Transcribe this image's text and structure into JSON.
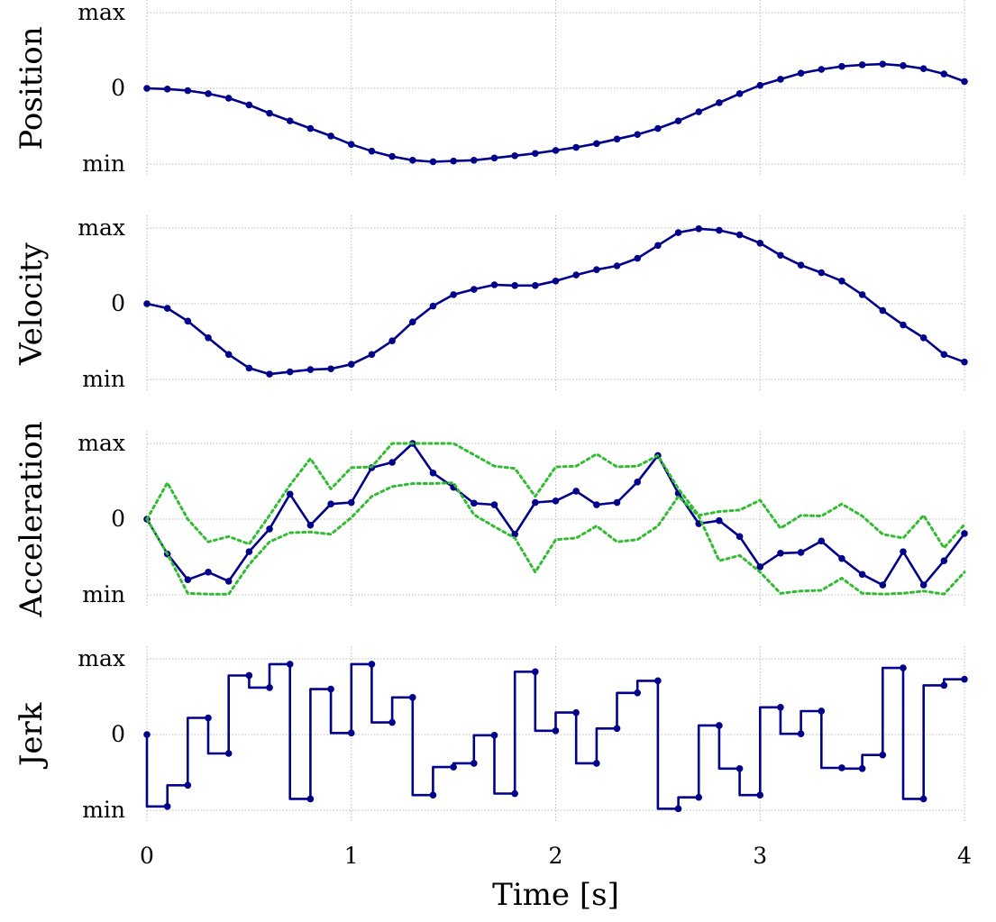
{
  "chart_data": [
    {
      "type": "line",
      "ylabel": "Position",
      "ytick_labels": [
        "max",
        "0",
        "min"
      ],
      "ylim": [
        -1,
        1
      ],
      "xlim": [
        0,
        4
      ],
      "grid": true,
      "series": [
        {
          "name": "position",
          "color": "#00008b",
          "markers": true,
          "x": [
            0,
            0.1,
            0.2,
            0.3,
            0.4,
            0.5,
            0.6,
            0.7,
            0.8,
            0.9,
            1.0,
            1.1,
            1.2,
            1.3,
            1.4,
            1.5,
            1.6,
            1.7,
            1.8,
            1.9,
            2.0,
            2.1,
            2.2,
            2.3,
            2.4,
            2.5,
            2.6,
            2.7,
            2.8,
            2.9,
            3.0,
            3.1,
            3.2,
            3.3,
            3.4,
            3.5,
            3.6,
            3.7,
            3.8,
            3.9,
            4.0
          ],
          "values": [
            0,
            -0.01,
            -0.03,
            -0.07,
            -0.13,
            -0.22,
            -0.33,
            -0.43,
            -0.53,
            -0.63,
            -0.74,
            -0.83,
            -0.9,
            -0.95,
            -0.97,
            -0.96,
            -0.95,
            -0.92,
            -0.89,
            -0.86,
            -0.82,
            -0.78,
            -0.73,
            -0.67,
            -0.61,
            -0.53,
            -0.43,
            -0.31,
            -0.19,
            -0.07,
            0.04,
            0.12,
            0.2,
            0.25,
            0.29,
            0.31,
            0.32,
            0.3,
            0.26,
            0.19,
            0.09
          ]
        }
      ]
    },
    {
      "type": "line",
      "ylabel": "Velocity",
      "ytick_labels": [
        "max",
        "0",
        "min"
      ],
      "ylim": [
        -1,
        1
      ],
      "xlim": [
        0,
        4
      ],
      "grid": true,
      "series": [
        {
          "name": "velocity",
          "color": "#00008b",
          "markers": true,
          "x": [
            0,
            0.1,
            0.2,
            0.3,
            0.4,
            0.5,
            0.6,
            0.7,
            0.8,
            0.9,
            1.0,
            1.1,
            1.2,
            1.3,
            1.4,
            1.5,
            1.6,
            1.7,
            1.8,
            1.9,
            2.0,
            2.1,
            2.2,
            2.3,
            2.4,
            2.5,
            2.6,
            2.7,
            2.8,
            2.9,
            3.0,
            3.1,
            3.2,
            3.3,
            3.4,
            3.5,
            3.6,
            3.7,
            3.8,
            3.9,
            4.0
          ],
          "values": [
            0,
            -0.06,
            -0.23,
            -0.45,
            -0.67,
            -0.85,
            -0.93,
            -0.9,
            -0.87,
            -0.86,
            -0.8,
            -0.67,
            -0.49,
            -0.24,
            -0.03,
            0.12,
            0.19,
            0.25,
            0.24,
            0.24,
            0.3,
            0.38,
            0.45,
            0.5,
            0.6,
            0.77,
            0.94,
            0.99,
            0.97,
            0.91,
            0.8,
            0.64,
            0.51,
            0.41,
            0.3,
            0.12,
            -0.09,
            -0.28,
            -0.45,
            -0.67,
            -0.77
          ]
        }
      ]
    },
    {
      "type": "line",
      "ylabel": "Acceleration",
      "ytick_labels": [
        "max",
        "0",
        "min"
      ],
      "ylim": [
        -1,
        1
      ],
      "xlim": [
        0,
        4
      ],
      "grid": true,
      "series": [
        {
          "name": "acceleration",
          "color": "#00008b",
          "markers": true,
          "x": [
            0,
            0.1,
            0.2,
            0.3,
            0.4,
            0.5,
            0.6,
            0.7,
            0.8,
            0.9,
            1.0,
            1.1,
            1.2,
            1.3,
            1.4,
            1.5,
            1.6,
            1.7,
            1.8,
            1.9,
            2.0,
            2.1,
            2.2,
            2.3,
            2.4,
            2.5,
            2.6,
            2.7,
            2.8,
            2.9,
            3.0,
            3.1,
            3.2,
            3.3,
            3.4,
            3.5,
            3.6,
            3.7,
            3.8,
            3.9,
            4.0
          ],
          "values": [
            0,
            -0.46,
            -0.8,
            -0.7,
            -0.82,
            -0.43,
            -0.13,
            0.33,
            -0.08,
            0.2,
            0.22,
            0.68,
            0.75,
            1.0,
            0.61,
            0.42,
            0.21,
            0.19,
            -0.2,
            0.22,
            0.24,
            0.37,
            0.19,
            0.22,
            0.49,
            0.84,
            0.34,
            -0.06,
            -0.02,
            -0.23,
            -0.63,
            -0.45,
            -0.44,
            -0.29,
            -0.52,
            -0.73,
            -0.87,
            -0.43,
            -0.87,
            -0.55,
            -0.19
          ]
        },
        {
          "name": "upper bound",
          "color": "#33bb33",
          "markers": false,
          "dotted": true,
          "x": [
            0,
            0.1,
            0.2,
            0.3,
            0.4,
            0.5,
            0.6,
            0.7,
            0.8,
            0.9,
            1.0,
            1.1,
            1.2,
            1.3,
            1.4,
            1.5,
            1.6,
            1.7,
            1.8,
            1.9,
            2.0,
            2.1,
            2.2,
            2.3,
            2.4,
            2.5,
            2.6,
            2.7,
            2.8,
            2.9,
            3.0,
            3.1,
            3.2,
            3.3,
            3.4,
            3.5,
            3.6,
            3.7,
            3.8,
            3.9,
            4.0
          ],
          "values": [
            0,
            0.48,
            0,
            -0.3,
            -0.23,
            -0.33,
            0.05,
            0.45,
            0.8,
            0.4,
            0.68,
            0.69,
            1.0,
            1.0,
            1.0,
            1.0,
            0.85,
            0.7,
            0.67,
            0.3,
            0.69,
            0.7,
            0.86,
            0.69,
            0.7,
            0.84,
            0.4,
            0.05,
            0.1,
            0.12,
            0.25,
            -0.12,
            0.05,
            0.04,
            0.2,
            0.04,
            -0.2,
            -0.25,
            0.05,
            -0.38,
            -0.07
          ]
        },
        {
          "name": "lower bound",
          "color": "#33bb33",
          "markers": false,
          "dotted": true,
          "x": [
            0,
            0.1,
            0.2,
            0.3,
            0.4,
            0.5,
            0.6,
            0.7,
            0.8,
            0.9,
            1.0,
            1.1,
            1.2,
            1.3,
            1.4,
            1.5,
            1.6,
            1.7,
            1.8,
            1.9,
            2.0,
            2.1,
            2.2,
            2.3,
            2.4,
            2.5,
            2.6,
            2.7,
            2.8,
            2.9,
            3.0,
            3.1,
            3.2,
            3.3,
            3.4,
            3.5,
            3.6,
            3.7,
            3.8,
            3.9,
            4.0
          ],
          "values": [
            0,
            -0.46,
            -0.98,
            -0.99,
            -0.99,
            -0.6,
            -0.3,
            -0.18,
            -0.17,
            -0.2,
            0.02,
            0.3,
            0.43,
            0.47,
            0.47,
            0.48,
            0.06,
            -0.1,
            -0.25,
            -0.7,
            -0.27,
            -0.25,
            -0.09,
            -0.3,
            -0.27,
            -0.09,
            0.3,
            0.04,
            -0.55,
            -0.48,
            -0.7,
            -0.98,
            -0.95,
            -0.94,
            -0.78,
            -0.98,
            -0.99,
            -0.98,
            -0.95,
            -0.99,
            -0.7
          ]
        }
      ]
    },
    {
      "type": "step",
      "ylabel": "Jerk",
      "ytick_labels": [
        "max",
        "0",
        "min"
      ],
      "ylim": [
        -1,
        1
      ],
      "xlim": [
        0,
        4
      ],
      "grid": true,
      "xlabel": "Time [s]",
      "xtick_labels": [
        "0",
        "1",
        "2",
        "3",
        "4"
      ],
      "xticks": [
        0,
        1,
        2,
        3,
        4
      ],
      "series": [
        {
          "name": "jerk",
          "color": "#00008b",
          "markers": true,
          "step": "pre",
          "x": [
            0,
            0.1,
            0.2,
            0.3,
            0.4,
            0.5,
            0.6,
            0.7,
            0.8,
            0.9,
            1.0,
            1.1,
            1.2,
            1.3,
            1.4,
            1.5,
            1.6,
            1.7,
            1.8,
            1.9,
            2.0,
            2.1,
            2.2,
            2.3,
            2.4,
            2.5,
            2.6,
            2.7,
            2.8,
            2.9,
            3.0,
            3.1,
            3.2,
            3.3,
            3.4,
            3.5,
            3.6,
            3.7,
            3.8,
            3.9,
            4.0
          ],
          "values": [
            0,
            -0.95,
            -0.67,
            0.22,
            -0.25,
            0.78,
            0.62,
            0.93,
            -0.85,
            0.6,
            0.02,
            0.93,
            0.16,
            0.49,
            -0.8,
            -0.43,
            -0.38,
            -0.01,
            -0.78,
            0.83,
            0.05,
            0.29,
            -0.38,
            0.08,
            0.55,
            0.71,
            -0.98,
            -0.83,
            0.12,
            -0.45,
            -0.8,
            0.36,
            0.01,
            0.31,
            -0.44,
            -0.45,
            -0.27,
            0.88,
            -0.85,
            0.65,
            0.73
          ]
        }
      ]
    }
  ]
}
